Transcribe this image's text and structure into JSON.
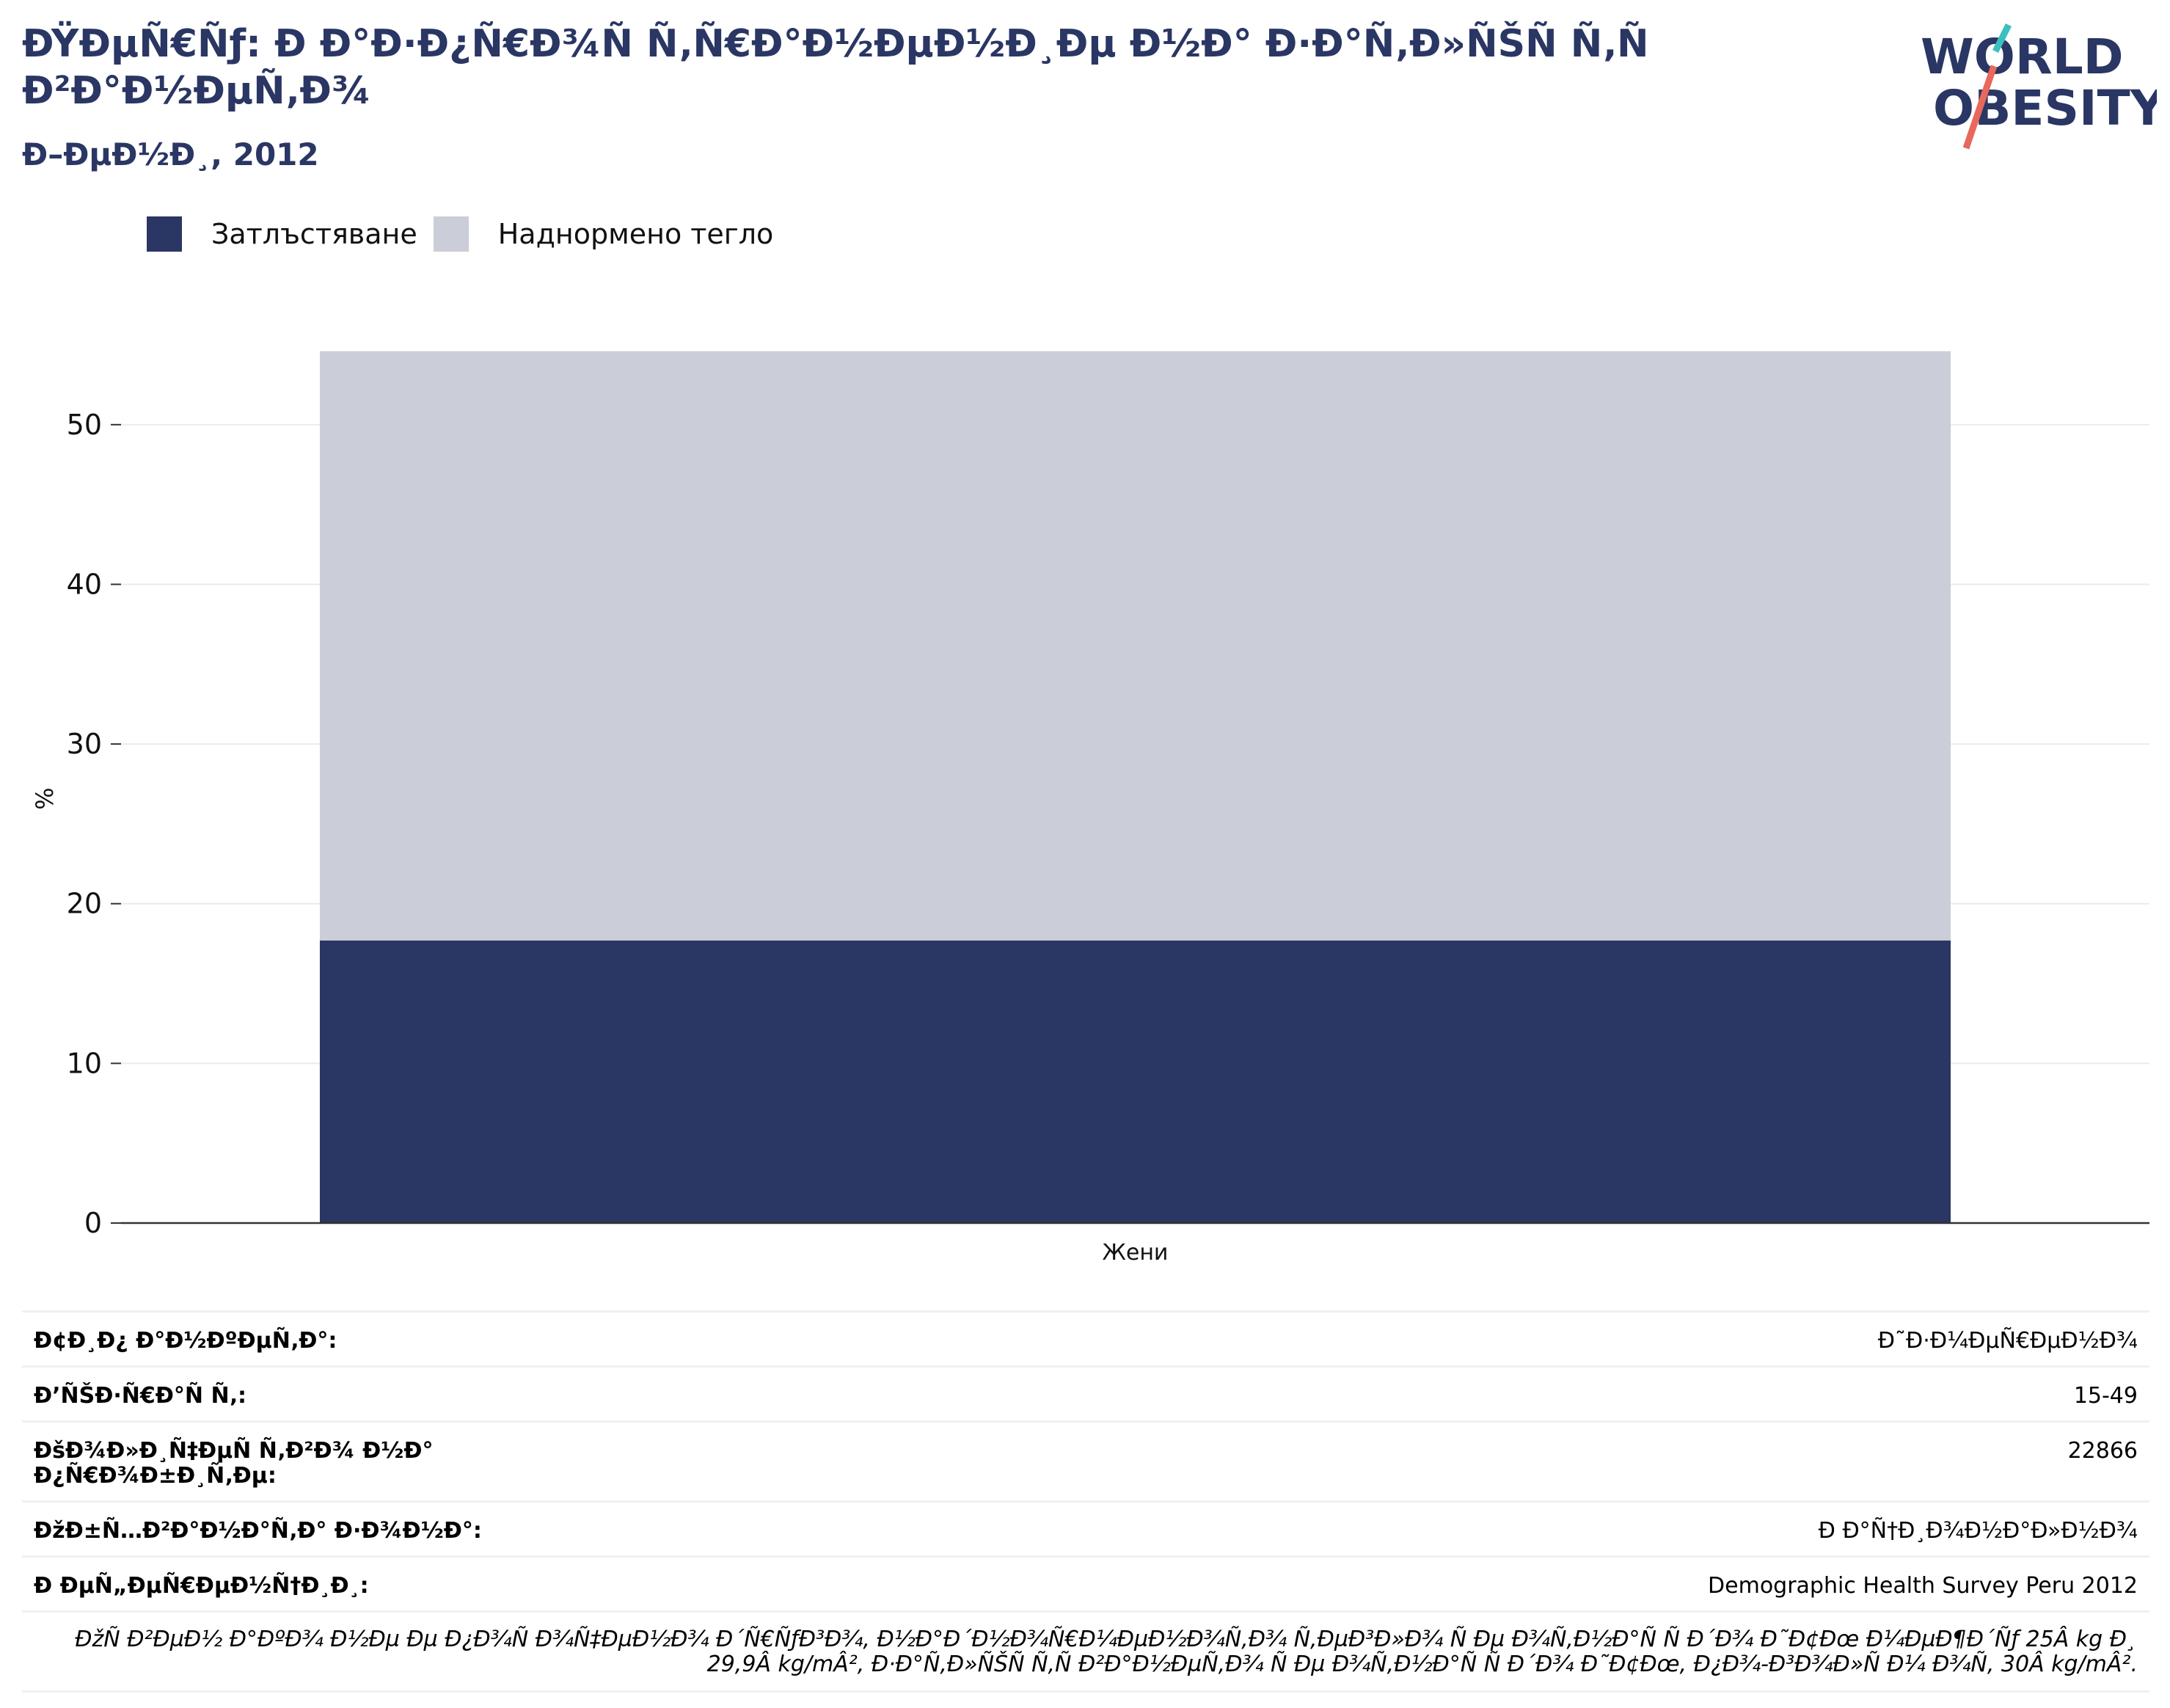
{
  "header": {
    "title": "ÐŸÐµÑ€Ñƒ: Ð Ð°Ð·Ð¿Ñ€Ð¾Ñ Ñ‚Ñ€Ð°Ð½ÐµÐ½Ð¸Ðµ Ð½Ð° Ð·Ð°Ñ‚Ð»ÑŠÑ Ñ‚Ñ Ð²Ð°Ð½ÐµÑ‚Ð¾",
    "subtitle": "Ð–ÐµÐ½Ð¸, 2012"
  },
  "logo": {
    "line1": "WORLD",
    "line2": "OBESITY",
    "colors": {
      "text": "#2a3663",
      "slash_teal": "#3bbfc1",
      "slash_red": "#e8685a"
    }
  },
  "colors": {
    "obesity": "#2a3663",
    "overweight": "#cbcdd8",
    "grid": "#ebebeb",
    "axis": "#333333"
  },
  "chart_data": {
    "type": "bar",
    "stacked": true,
    "categories": [
      "Жени"
    ],
    "series": [
      {
        "name": "Затлъстяване",
        "values": [
          17.7
        ],
        "color": "#2a3663"
      },
      {
        "name": "Наднормено тегло",
        "values": [
          36.9
        ],
        "color": "#cbcdd8"
      }
    ],
    "ylabel": "%",
    "ylim": [
      0,
      55
    ],
    "yticks": [
      0,
      10,
      20,
      30,
      40,
      50
    ],
    "grid": true,
    "legend_position": "top-left"
  },
  "meta": {
    "rows": [
      {
        "label": "Ð¢Ð¸Ð¿ Ð°Ð½ÐºÐµÑ‚Ð°:",
        "value": "Ð˜Ð·Ð¼ÐµÑ€ÐµÐ½Ð¾"
      },
      {
        "label": "Ð’ÑŠÐ·Ñ€Ð°Ñ Ñ‚:",
        "value": "15-49"
      },
      {
        "label": "ÐšÐ¾Ð»Ð¸Ñ‡ÐµÑ Ñ‚Ð²Ð¾ Ð½Ð° Ð¿Ñ€Ð¾Ð±Ð¸Ñ‚Ðµ:",
        "value": "22866"
      },
      {
        "label": "ÐžÐ±Ñ…Ð²Ð°Ð½Ð°Ñ‚Ð° Ð·Ð¾Ð½Ð°:",
        "value": "Ð Ð°Ñ†Ð¸Ð¾Ð½Ð°Ð»Ð½Ð¾"
      },
      {
        "label": "Ð ÐµÑ„ÐµÑ€ÐµÐ½Ñ†Ð¸Ð¸:",
        "value": "Demographic Health Survey Peru 2012"
      }
    ],
    "note": "ÐžÑ Ð²ÐµÐ½ Ð°ÐºÐ¾ Ð½Ðµ Ðµ Ð¿Ð¾Ñ Ð¾Ñ‡ÐµÐ½Ð¾ Ð´Ñ€ÑƒÐ³Ð¾, Ð½Ð°Ð´Ð½Ð¾Ñ€Ð¼ÐµÐ½Ð¾Ñ‚Ð¾ Ñ‚ÐµÐ³Ð»Ð¾ Ñ Ðµ Ð¾Ñ‚Ð½Ð°Ñ Ñ Ð´Ð¾ Ð˜Ð¢Ðœ Ð¼ÐµÐ¶Ð´Ñƒ 25Â kg Ð¸ 29,9Â kg/mÂ², Ð·Ð°Ñ‚Ð»ÑŠÑ Ñ‚Ñ Ð²Ð°Ð½ÐµÑ‚Ð¾ Ñ Ðµ Ð¾Ñ‚Ð½Ð°Ñ Ñ Ð´Ð¾ Ð˜Ð¢Ðœ, Ð¿Ð¾-Ð³Ð¾Ð»Ñ Ð¼ Ð¾Ñ‚ 30Â kg/mÂ²."
  }
}
